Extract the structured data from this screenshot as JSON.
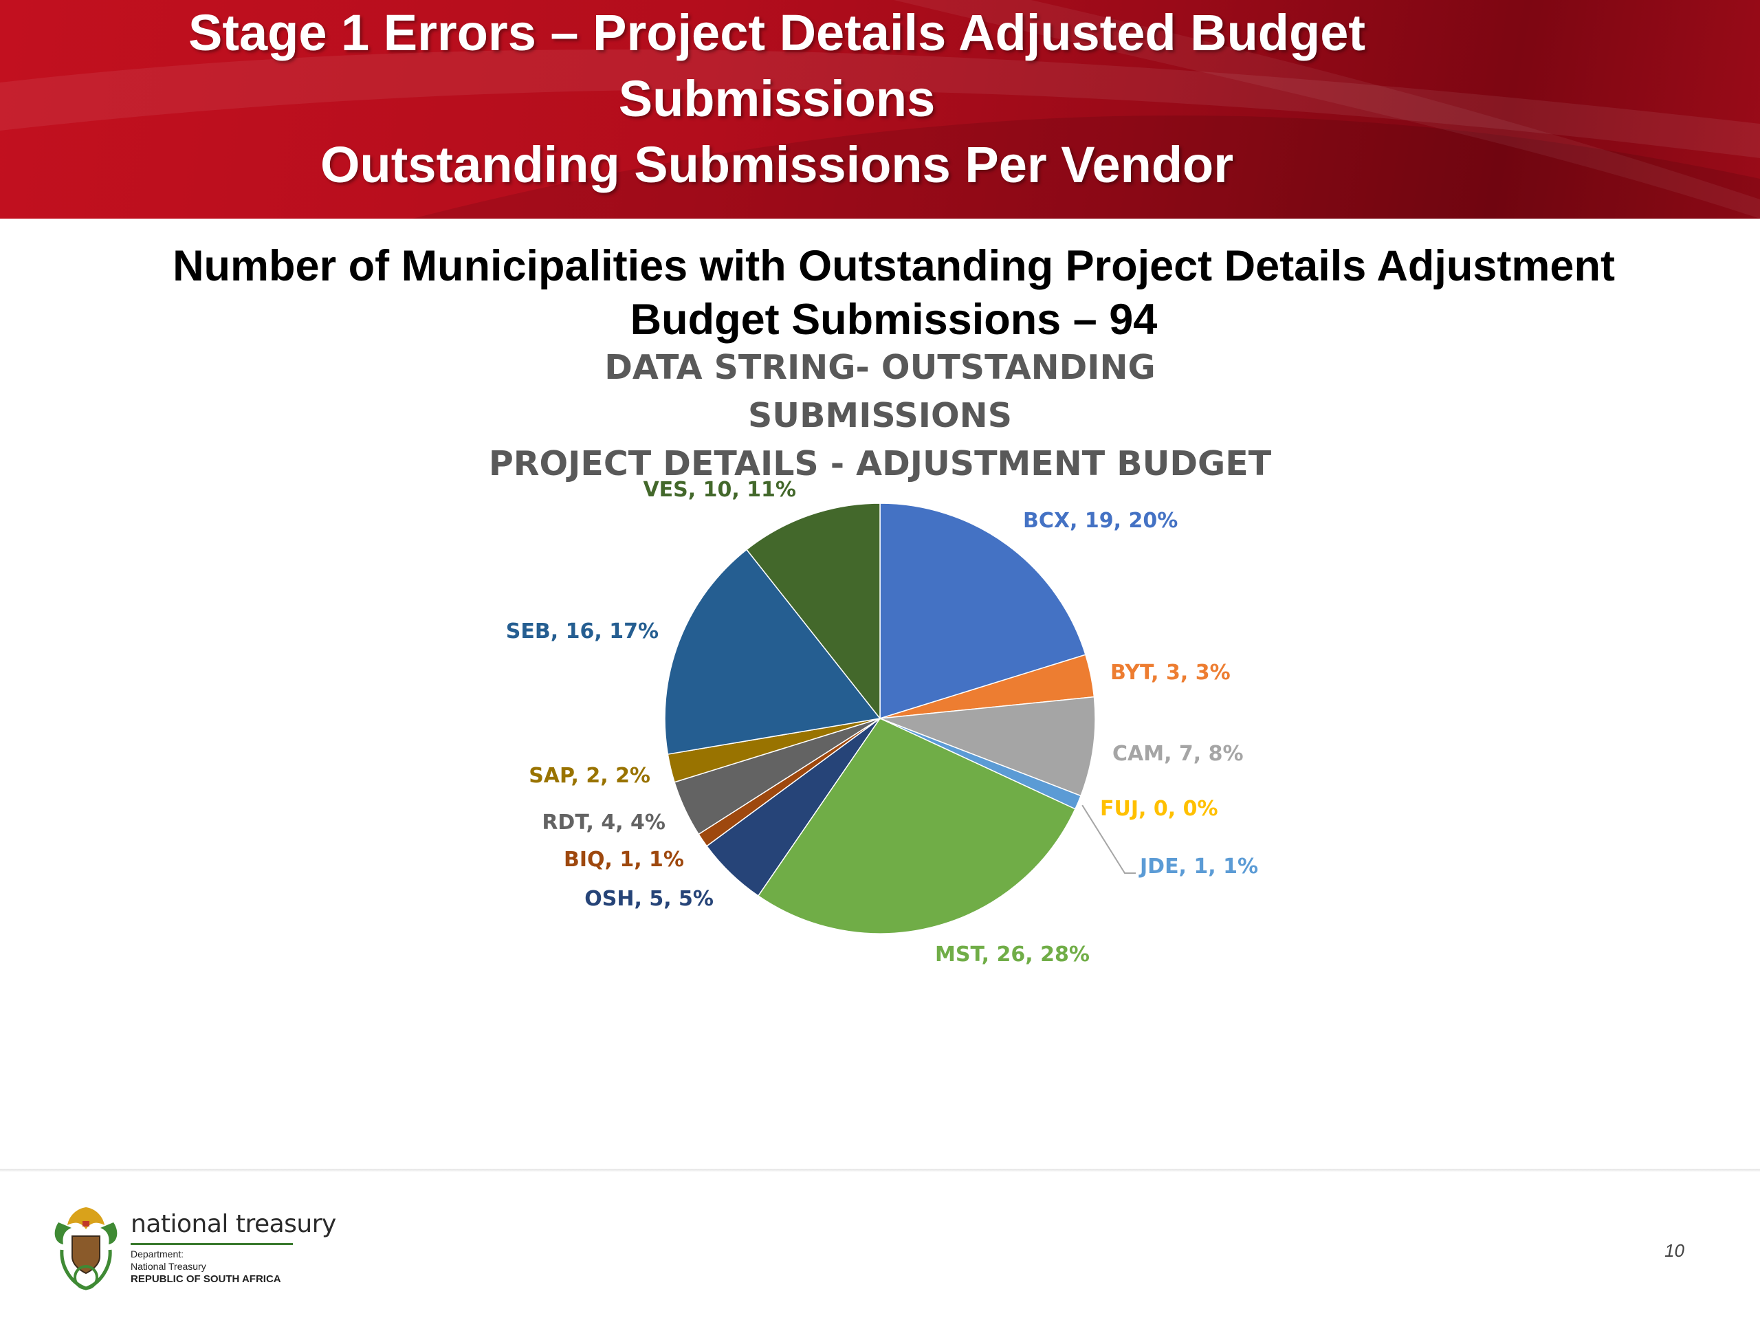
{
  "slide": {
    "title_lines": [
      "Stage 1 Errors – Project Details Adjusted Budget",
      "Submissions",
      "Outstanding Submissions Per Vendor"
    ],
    "headline_lines": [
      "Number of Municipalities with Outstanding Project Details Adjustment",
      "Budget Submissions – 94"
    ],
    "page_number": "10"
  },
  "footer": {
    "org_name": "national treasury",
    "dept_label": "Department:",
    "dept_name": "National Treasury",
    "country": "REPUBLIC OF SOUTH AFRICA"
  },
  "chart_data": {
    "type": "pie",
    "title_lines": [
      "DATA STRING- OUTSTANDING SUBMISSIONS",
      "PROJECT DETAILS - ADJUSTMENT BUDGET"
    ],
    "slices": [
      {
        "label": "BCX",
        "value": 19,
        "percent": "20%",
        "color": "#4472C4",
        "label_color": "#4472C4"
      },
      {
        "label": "BYT",
        "value": 3,
        "percent": "3%",
        "color": "#ED7D31",
        "label_color": "#ED7D31"
      },
      {
        "label": "CAM",
        "value": 7,
        "percent": "8%",
        "color": "#A5A5A5",
        "label_color": "#A5A5A5"
      },
      {
        "label": "FUJ",
        "value": 0,
        "percent": "0%",
        "color": "#FFC000",
        "label_color": "#FFC000"
      },
      {
        "label": "JDE",
        "value": 1,
        "percent": "1%",
        "color": "#5B9BD5",
        "label_color": "#5B9BD5"
      },
      {
        "label": "MST",
        "value": 26,
        "percent": "28%",
        "color": "#70AD47",
        "label_color": "#70AD47"
      },
      {
        "label": "OSH",
        "value": 5,
        "percent": "5%",
        "color": "#264478",
        "label_color": "#264478"
      },
      {
        "label": "BIQ",
        "value": 1,
        "percent": "1%",
        "color": "#9E480E",
        "label_color": "#9E480E"
      },
      {
        "label": "RDT",
        "value": 4,
        "percent": "4%",
        "color": "#636363",
        "label_color": "#636363"
      },
      {
        "label": "SAP",
        "value": 2,
        "percent": "2%",
        "color": "#997300",
        "label_color": "#997300"
      },
      {
        "label": "SEB",
        "value": 16,
        "percent": "17%",
        "color": "#255E91",
        "label_color": "#255E91"
      },
      {
        "label": "VES",
        "value": 10,
        "percent": "11%",
        "color": "#43682B",
        "label_color": "#43682B"
      }
    ]
  }
}
